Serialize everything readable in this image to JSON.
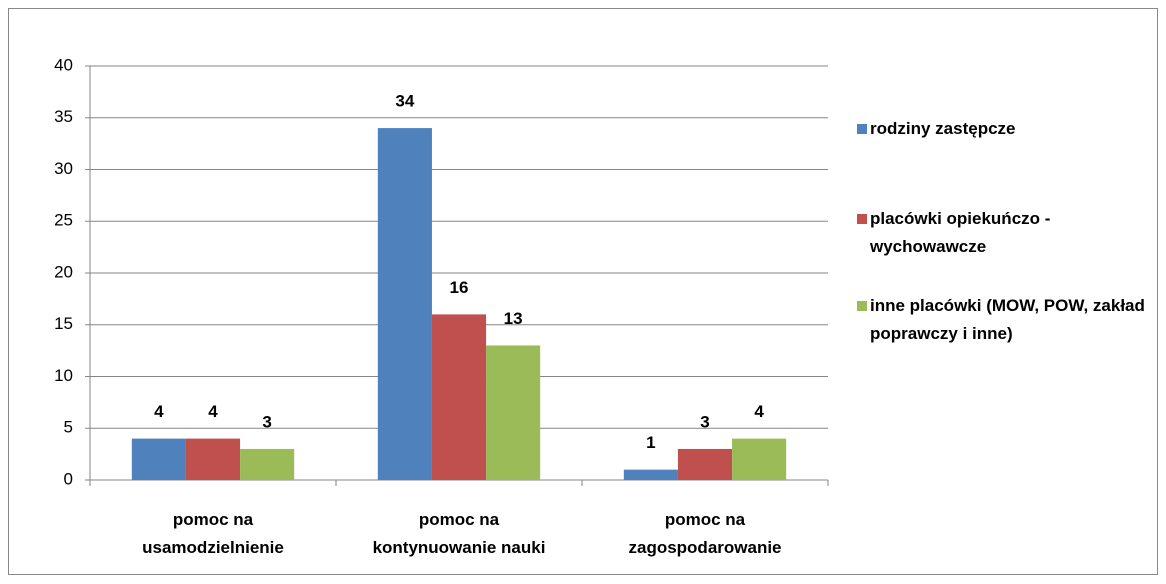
{
  "chart_data": {
    "type": "bar",
    "categories": [
      "pomoc na\nusamodzielnienie",
      "pomoc na\nkontynuowanie nauki",
      "pomoc na\nzagospodarowanie"
    ],
    "series": [
      {
        "name": "rodziny zastępcze",
        "color": "#4f81bd",
        "values": [
          4,
          34,
          1
        ]
      },
      {
        "name": "placówki opiekuńczo - wychowawcze",
        "color": "#c0504d",
        "values": [
          4,
          16,
          3
        ]
      },
      {
        "name": "inne placówki (MOW, POW, zakład poprawczy i inne)",
        "color": "#9bbb59",
        "values": [
          3,
          13,
          4
        ]
      }
    ],
    "ylim": [
      0,
      40
    ],
    "yticks": [
      0,
      5,
      10,
      15,
      20,
      25,
      30,
      35,
      40
    ],
    "grid": true,
    "legend": "right"
  }
}
